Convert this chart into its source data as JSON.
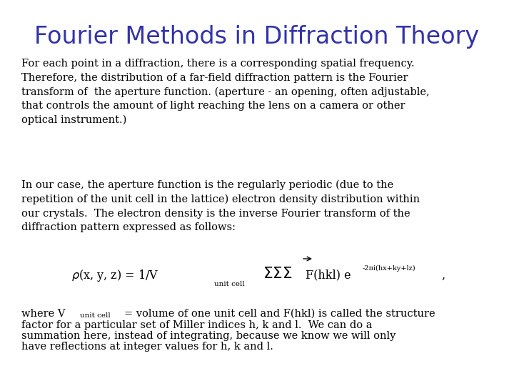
{
  "title": "Fourier Methods in Diffraction Theory",
  "title_color": "#3333AA",
  "title_fontsize": 24,
  "background_color": "#FFFFFF",
  "text_color": "#000000",
  "text_fontsize": 10.5,
  "paragraph1": "For each point in a diffraction, there is a corresponding spatial frequency.\nTherefore, the distribution of a far-field diffraction pattern is the Fourier\ntransform of  the aperture function. (aperture - an opening, often adjustable,\nthat controls the amount of light reaching the lens on a camera or other\noptical instrument.)",
  "paragraph2": "In our case, the aperture function is the regularly periodic (due to the\nrepetition of the unit cell in the lattice) electron density distribution within\nour crystals.  The electron density is the inverse Fourier transform of the\ndiffraction pattern expressed as follows:",
  "paragraph3_full": "where V₊₊₊₊₊₊₊₊ = volume of one unit cell and F(hkl) is called the structure\nfactor for a particular set of Miller indices h, k and l.  We can do a\nsummation here, instead of integrating, because we know we will only\nhave reflections at integer values for h, k and l."
}
